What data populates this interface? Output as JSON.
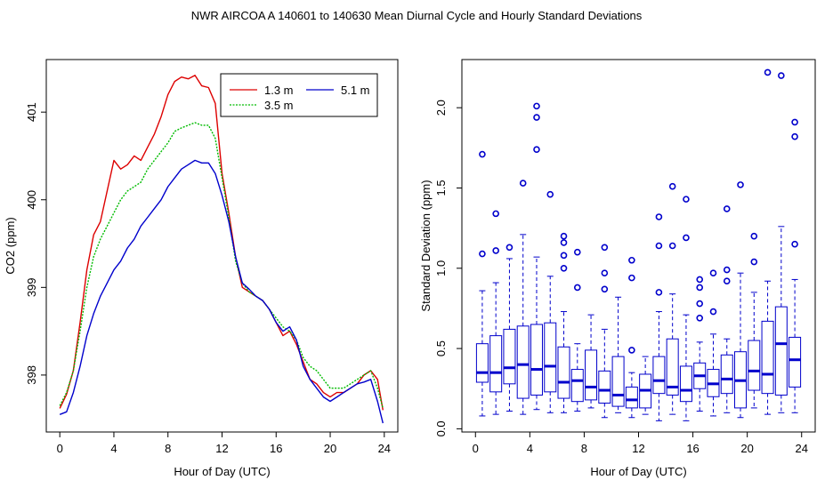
{
  "figure_title": "NWR   AIRCOA A   140601 to 140630   Mean Diurnal Cycle and Hourly Standard Deviations",
  "chart_data": [
    {
      "type": "line",
      "xlabel": "Hour of Day (UTC)",
      "ylabel": "CO2 (ppm)",
      "xlim": [
        -1,
        25
      ],
      "ylim": [
        397.35,
        401.6
      ],
      "xticks": [
        0,
        4,
        8,
        12,
        16,
        20,
        24
      ],
      "yticks": [
        398,
        399,
        400,
        401
      ],
      "legend_position": "top-right",
      "colors": {
        "1.3 m": "#dd0000",
        "3.5 m": "#00bb00",
        "5.1 m": "#0000cc"
      },
      "series": [
        {
          "name": "1.3 m",
          "x": [
            0,
            0.5,
            1,
            1.5,
            2,
            2.5,
            3,
            3.5,
            4,
            4.5,
            5,
            5.5,
            6,
            6.5,
            7,
            7.5,
            8,
            8.5,
            9,
            9.5,
            10,
            10.5,
            11,
            11.5,
            12,
            12.5,
            13,
            13.5,
            14,
            14.5,
            15,
            15.5,
            16,
            16.5,
            17,
            17.5,
            18,
            18.5,
            19,
            19.5,
            20,
            20.5,
            21,
            21.5,
            22,
            22.5,
            23,
            23.5,
            23.9
          ],
          "y": [
            397.62,
            397.78,
            398.05,
            398.6,
            399.2,
            399.6,
            399.75,
            400.1,
            400.45,
            400.35,
            400.4,
            400.5,
            400.45,
            400.6,
            400.75,
            400.95,
            401.2,
            401.35,
            401.4,
            401.38,
            401.42,
            401.3,
            401.28,
            401.1,
            400.3,
            399.85,
            399.35,
            399.0,
            398.95,
            398.9,
            398.85,
            398.75,
            398.6,
            398.45,
            398.5,
            398.35,
            398.15,
            397.95,
            397.9,
            397.8,
            397.75,
            397.8,
            397.8,
            397.85,
            397.9,
            398.0,
            398.05,
            397.95,
            397.6
          ]
        },
        {
          "name": "3.5 m",
          "x": [
            0,
            0.5,
            1,
            1.5,
            2,
            2.5,
            3,
            3.5,
            4,
            4.5,
            5,
            5.5,
            6,
            6.5,
            7,
            7.5,
            8,
            8.5,
            9,
            9.5,
            10,
            10.5,
            11,
            11.5,
            12,
            12.5,
            13,
            13.5,
            14,
            14.5,
            15,
            15.5,
            16,
            16.5,
            17,
            17.5,
            18,
            18.5,
            19,
            19.5,
            20,
            20.5,
            21,
            21.5,
            22,
            22.5,
            23,
            23.5,
            23.9
          ],
          "y": [
            397.65,
            397.8,
            398.05,
            398.5,
            399.0,
            399.35,
            399.55,
            399.7,
            399.85,
            400.0,
            400.1,
            400.15,
            400.2,
            400.35,
            400.45,
            400.55,
            400.65,
            400.78,
            400.82,
            400.85,
            400.88,
            400.85,
            400.85,
            400.7,
            400.25,
            399.8,
            399.3,
            399.05,
            398.95,
            398.9,
            398.85,
            398.75,
            398.65,
            398.55,
            398.5,
            398.4,
            398.2,
            398.1,
            398.05,
            397.95,
            397.85,
            397.85,
            397.85,
            397.9,
            397.95,
            398.0,
            398.05,
            397.85,
            397.62
          ]
        },
        {
          "name": "5.1 m",
          "x": [
            0,
            0.5,
            1,
            1.5,
            2,
            2.5,
            3,
            3.5,
            4,
            4.5,
            5,
            5.5,
            6,
            6.5,
            7,
            7.5,
            8,
            8.5,
            9,
            9.5,
            10,
            10.5,
            11,
            11.5,
            12,
            12.5,
            13,
            13.5,
            14,
            14.5,
            15,
            15.5,
            16,
            16.5,
            17,
            17.5,
            18,
            18.5,
            19,
            19.5,
            20,
            20.5,
            21,
            21.5,
            22,
            22.5,
            23,
            23.5,
            23.9
          ],
          "y": [
            397.55,
            397.58,
            397.8,
            398.1,
            398.45,
            398.7,
            398.9,
            399.05,
            399.2,
            399.3,
            399.45,
            399.55,
            399.7,
            399.8,
            399.9,
            400.0,
            400.15,
            400.25,
            400.35,
            400.4,
            400.45,
            400.42,
            400.42,
            400.3,
            400.05,
            399.75,
            399.35,
            399.05,
            398.98,
            398.9,
            398.85,
            398.75,
            398.6,
            398.5,
            398.55,
            398.4,
            398.1,
            397.95,
            397.85,
            397.75,
            397.7,
            397.75,
            397.8,
            397.85,
            397.9,
            397.92,
            397.95,
            397.7,
            397.45
          ]
        }
      ]
    },
    {
      "type": "box",
      "xlabel": "Hour of Day (UTC)",
      "ylabel": "Standard Deviation (ppm)",
      "xlim": [
        -1,
        25
      ],
      "ylim": [
        -0.02,
        2.3
      ],
      "xticks": [
        0,
        4,
        8,
        12,
        16,
        20,
        24
      ],
      "yticks": [
        0.0,
        0.5,
        1.0,
        1.5,
        2.0
      ],
      "yticklabels": [
        "0.0",
        "0.5",
        "1.0",
        "1.5",
        "2.0"
      ],
      "box_color": "#0000cc",
      "boxes": [
        {
          "x": 0.5,
          "wlo": 0.08,
          "q1": 0.29,
          "med": 0.35,
          "q3": 0.53,
          "whi": 0.86,
          "outliers": [
            1.09,
            1.71
          ]
        },
        {
          "x": 1.5,
          "wlo": 0.09,
          "q1": 0.23,
          "med": 0.35,
          "q3": 0.58,
          "whi": 0.91,
          "outliers": [
            1.11,
            1.34
          ]
        },
        {
          "x": 2.5,
          "wlo": 0.11,
          "q1": 0.28,
          "med": 0.38,
          "q3": 0.62,
          "whi": 1.06,
          "outliers": [
            1.13
          ]
        },
        {
          "x": 3.5,
          "wlo": 0.09,
          "q1": 0.19,
          "med": 0.4,
          "q3": 0.64,
          "whi": 1.21,
          "outliers": [
            1.53
          ]
        },
        {
          "x": 4.5,
          "wlo": 0.12,
          "q1": 0.21,
          "med": 0.37,
          "q3": 0.65,
          "whi": 1.07,
          "outliers": [
            1.74,
            1.94,
            2.01
          ]
        },
        {
          "x": 5.5,
          "wlo": 0.1,
          "q1": 0.23,
          "med": 0.39,
          "q3": 0.66,
          "whi": 0.95,
          "outliers": [
            1.46
          ]
        },
        {
          "x": 6.5,
          "wlo": 0.1,
          "q1": 0.19,
          "med": 0.29,
          "q3": 0.51,
          "whi": 0.73,
          "outliers": [
            1.0,
            1.08,
            1.16,
            1.2
          ]
        },
        {
          "x": 7.5,
          "wlo": 0.11,
          "q1": 0.17,
          "med": 0.3,
          "q3": 0.37,
          "whi": 0.53,
          "outliers": [
            0.88,
            1.1
          ]
        },
        {
          "x": 8.5,
          "wlo": 0.13,
          "q1": 0.18,
          "med": 0.26,
          "q3": 0.49,
          "whi": 0.71,
          "outliers": []
        },
        {
          "x": 9.5,
          "wlo": 0.07,
          "q1": 0.16,
          "med": 0.24,
          "q3": 0.36,
          "whi": 0.62,
          "outliers": [
            0.87,
            0.97,
            1.13
          ]
        },
        {
          "x": 10.5,
          "wlo": 0.1,
          "q1": 0.14,
          "med": 0.21,
          "q3": 0.45,
          "whi": 0.82,
          "outliers": []
        },
        {
          "x": 11.5,
          "wlo": 0.07,
          "q1": 0.13,
          "med": 0.18,
          "q3": 0.26,
          "whi": 0.35,
          "outliers": [
            0.49,
            0.94,
            1.05
          ]
        },
        {
          "x": 12.5,
          "wlo": 0.09,
          "q1": 0.13,
          "med": 0.24,
          "q3": 0.34,
          "whi": 0.45,
          "outliers": []
        },
        {
          "x": 13.5,
          "wlo": 0.05,
          "q1": 0.22,
          "med": 0.3,
          "q3": 0.45,
          "whi": 0.73,
          "outliers": [
            0.85,
            1.14,
            1.32
          ]
        },
        {
          "x": 14.5,
          "wlo": 0.09,
          "q1": 0.21,
          "med": 0.26,
          "q3": 0.56,
          "whi": 0.84,
          "outliers": [
            1.14,
            1.51
          ]
        },
        {
          "x": 15.5,
          "wlo": 0.05,
          "q1": 0.17,
          "med": 0.24,
          "q3": 0.39,
          "whi": 0.71,
          "outliers": [
            1.19,
            1.43
          ]
        },
        {
          "x": 16.5,
          "wlo": 0.11,
          "q1": 0.25,
          "med": 0.33,
          "q3": 0.41,
          "whi": 0.54,
          "outliers": [
            0.69,
            0.78,
            0.88,
            0.93
          ]
        },
        {
          "x": 17.5,
          "wlo": 0.08,
          "q1": 0.2,
          "med": 0.28,
          "q3": 0.37,
          "whi": 0.59,
          "outliers": [
            0.73,
            0.97
          ]
        },
        {
          "x": 18.5,
          "wlo": 0.1,
          "q1": 0.22,
          "med": 0.31,
          "q3": 0.46,
          "whi": 0.56,
          "outliers": [
            0.92,
            0.99,
            1.37
          ]
        },
        {
          "x": 19.5,
          "wlo": 0.07,
          "q1": 0.13,
          "med": 0.3,
          "q3": 0.48,
          "whi": 0.97,
          "outliers": [
            1.52
          ]
        },
        {
          "x": 20.5,
          "wlo": 0.13,
          "q1": 0.24,
          "med": 0.36,
          "q3": 0.55,
          "whi": 0.85,
          "outliers": [
            1.04,
            1.2
          ]
        },
        {
          "x": 21.5,
          "wlo": 0.09,
          "q1": 0.22,
          "med": 0.34,
          "q3": 0.67,
          "whi": 0.92,
          "outliers": [
            2.22
          ]
        },
        {
          "x": 22.5,
          "wlo": 0.1,
          "q1": 0.21,
          "med": 0.53,
          "q3": 0.76,
          "whi": 1.26,
          "outliers": [
            2.2
          ]
        },
        {
          "x": 23.5,
          "wlo": 0.1,
          "q1": 0.26,
          "med": 0.43,
          "q3": 0.57,
          "whi": 0.93,
          "outliers": [
            1.15,
            1.82,
            1.91
          ]
        }
      ]
    }
  ]
}
